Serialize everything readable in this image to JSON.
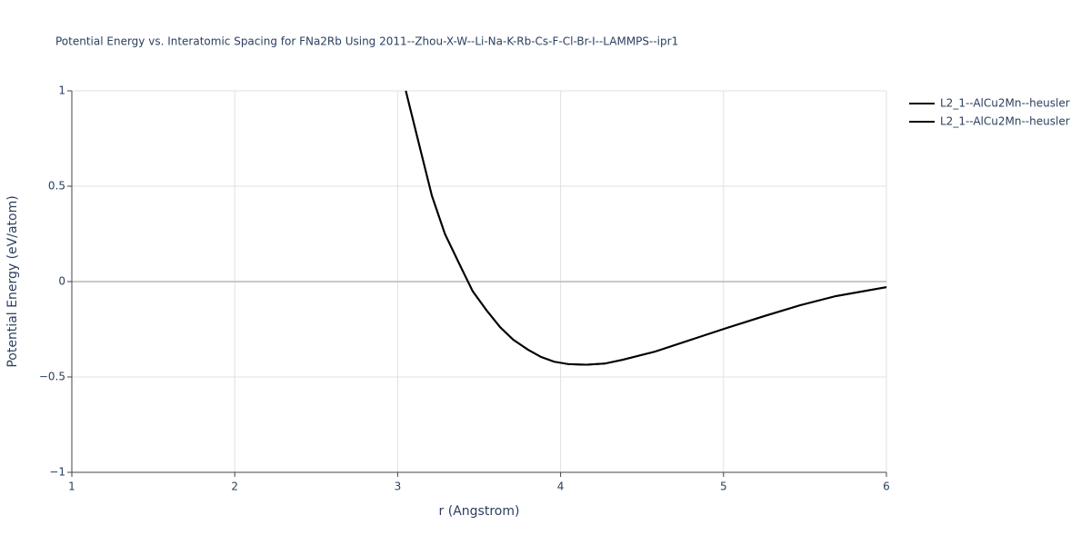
{
  "chart_data": {
    "type": "line",
    "title": "Potential Energy vs. Interatomic Spacing for FNa2Rb Using 2011--Zhou-X-W--Li-Na-K-Rb-Cs-F-Cl-Br-I--LAMMPS--ipr1",
    "x_label": "r (Angstrom)",
    "y_label": "Potential Energy (eV/atom)",
    "x": [
      3.05,
      3.126,
      3.21,
      3.29,
      3.38,
      3.46,
      3.545,
      3.63,
      3.71,
      3.8,
      3.88,
      3.96,
      4.05,
      4.16,
      4.27,
      4.38,
      4.58,
      4.8,
      5.02,
      5.25,
      5.47,
      5.69,
      6.0
    ],
    "series": [
      {
        "name": "L2_1--AlCu2Mn--heusler",
        "color": "#000000",
        "values": [
          1.0,
          0.738,
          0.45,
          0.25,
          0.09,
          -0.05,
          -0.15,
          -0.24,
          -0.305,
          -0.357,
          -0.395,
          -0.42,
          -0.433,
          -0.436,
          -0.43,
          -0.41,
          -0.367,
          -0.305,
          -0.243,
          -0.181,
          -0.124,
          -0.076,
          -0.029
        ]
      },
      {
        "name": "L2_1--AlCu2Mn--heusler",
        "color": "#000000",
        "values": [
          1.0,
          0.738,
          0.45,
          0.25,
          0.09,
          -0.05,
          -0.15,
          -0.24,
          -0.305,
          -0.357,
          -0.395,
          -0.42,
          -0.433,
          -0.436,
          -0.43,
          -0.41,
          -0.367,
          -0.305,
          -0.243,
          -0.181,
          -0.124,
          -0.076,
          -0.029
        ]
      }
    ],
    "xlim": [
      1,
      6
    ],
    "xticks": [
      1,
      2,
      3,
      4,
      5,
      6
    ],
    "ylim": [
      -1,
      1
    ],
    "yticks": [
      {
        "value": -1,
        "label": "−1"
      },
      {
        "value": -0.5,
        "label": "−0.5"
      },
      0,
      0.5,
      1
    ],
    "grid": true
  }
}
